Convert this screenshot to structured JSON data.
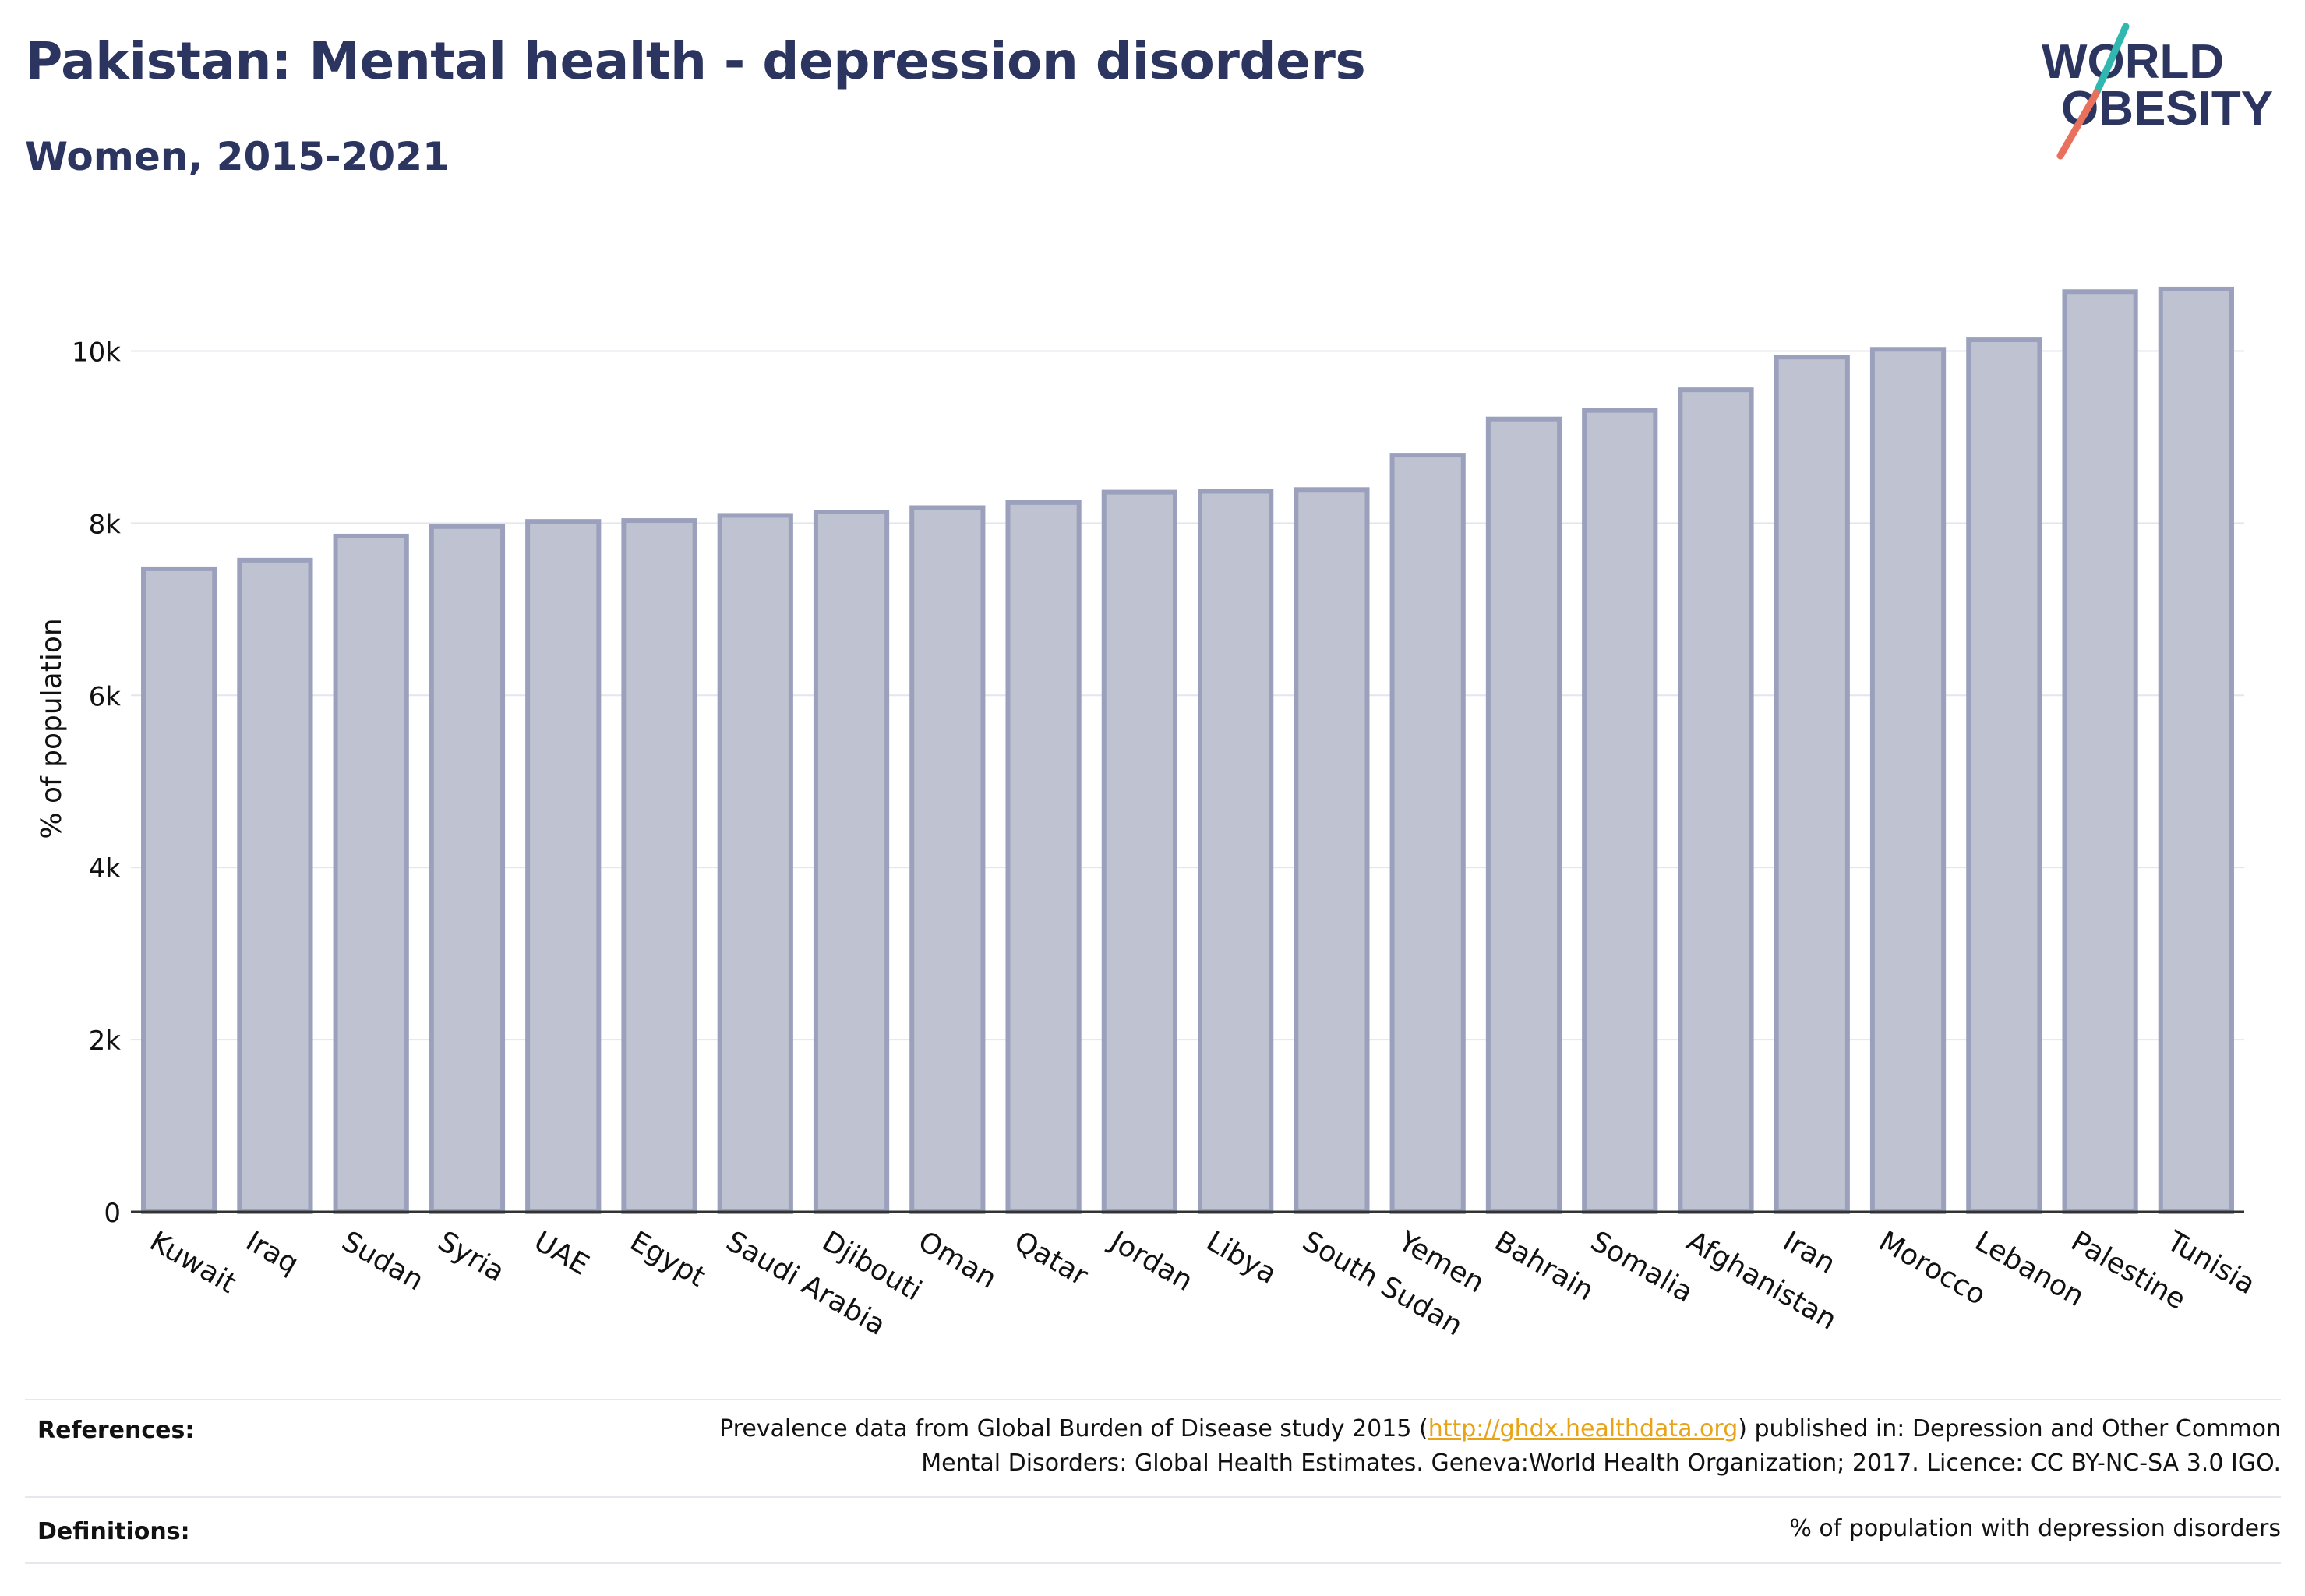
{
  "header": {
    "title": "Pakistan: Mental health - depression disorders",
    "subtitle": "Women, 2015-2021"
  },
  "logo": {
    "line1": "WORLD",
    "line2": "OBESITY"
  },
  "chart_data": {
    "type": "bar",
    "ylabel": "% of population",
    "xlabel": "",
    "ylim": [
      0,
      11000
    ],
    "yticks": [
      0,
      2000,
      4000,
      6000,
      8000,
      10000
    ],
    "ytick_labels": [
      "0",
      "2k",
      "4k",
      "6k",
      "8k",
      "10k"
    ],
    "grid": true,
    "bar_color": "#bfc3d1",
    "bar_edge_color": "#9ba1bd",
    "categories": [
      "Kuwait",
      "Iraq",
      "Sudan",
      "Syria",
      "UAE",
      "Egypt",
      "Saudi Arabia",
      "Djibouti",
      "Oman",
      "Qatar",
      "Jordan",
      "Libya",
      "South Sudan",
      "Yemen",
      "Bahrain",
      "Somalia",
      "Afghanistan",
      "Iran",
      "Morocco",
      "Lebanon",
      "Palestine",
      "Tunisia"
    ],
    "values": [
      7470,
      7570,
      7850,
      7960,
      8020,
      8030,
      8090,
      8130,
      8180,
      8240,
      8360,
      8370,
      8390,
      8790,
      9210,
      9310,
      9550,
      9930,
      10020,
      10130,
      10690,
      10720
    ]
  },
  "footer": {
    "references_label": "References:",
    "references_line1_before": "Prevalence data from Global Burden of Disease study 2015 (",
    "references_link": "http://ghdx.healthdata.org",
    "references_line1_after": ") published in: Depression and Other Common",
    "references_line2": "Mental Disorders: Global Health Estimates. Geneva:World Health Organization; 2017. Licence: CC BY-NC-SA 3.0 IGO.",
    "definitions_label": "Definitions:",
    "definitions_text": "% of population with depression disorders"
  },
  "colors": {
    "title": "#2b3560",
    "logo_navy": "#2b3560",
    "logo_teal": "#2fb7b0",
    "logo_coral": "#e9705d",
    "link": "#e8a317"
  }
}
